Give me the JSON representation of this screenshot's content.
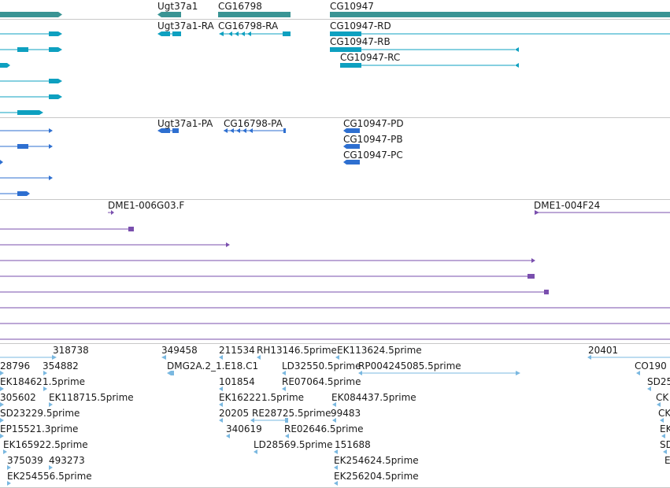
{
  "colors": {
    "gene": "#3a9494",
    "mrna": "#0ea0c0",
    "cds": "#2e6fd0",
    "clone": "#7a4fae",
    "est": "#7ab8e0",
    "divider": "#c8c8c8",
    "text": "#1a1a1a"
  },
  "tracks": [
    {
      "id": "genes",
      "color_key": "gene",
      "rows": [
        {
          "features": [
            {
              "label": "",
              "dir": "none",
              "glyph": "thick"
            },
            {
              "label": "Ugt37a1",
              "dir": "minus",
              "glyph": "thick"
            },
            {
              "label": "CG16798",
              "dir": "none",
              "glyph": "thick"
            },
            {
              "label": "CG10947",
              "dir": "none",
              "glyph": "thick"
            }
          ]
        }
      ]
    },
    {
      "id": "transcripts",
      "color_key": "mrna",
      "rows": [
        {
          "features": [
            {
              "label": "",
              "dir": "plus",
              "glyph": "gene-model"
            },
            {
              "label": "Ugt37a1-RA",
              "dir": "minus",
              "glyph": "gene-model"
            },
            {
              "label": "CG16798-RA",
              "dir": "minus",
              "glyph": "gene-model"
            },
            {
              "label": "CG10947-RD",
              "dir": "none",
              "glyph": "gene-model"
            }
          ]
        },
        {
          "features": [
            {
              "label": "",
              "dir": "plus",
              "glyph": "gene-model"
            },
            {
              "label": "CG10947-RB",
              "dir": "minus",
              "glyph": "gene-model"
            }
          ]
        },
        {
          "features": [
            {
              "label": "",
              "dir": "plus",
              "glyph": "gene-model"
            },
            {
              "label": "CG10947-RC",
              "dir": "minus",
              "glyph": "gene-model"
            }
          ]
        },
        {
          "features": [
            {
              "label": "",
              "dir": "plus",
              "glyph": "gene-model"
            }
          ]
        },
        {
          "features": [
            {
              "label": "",
              "dir": "plus",
              "glyph": "gene-model"
            }
          ]
        },
        {
          "features": [
            {
              "label": "",
              "dir": "plus",
              "glyph": "gene-model"
            }
          ]
        }
      ]
    },
    {
      "id": "cds",
      "color_key": "cds",
      "rows": [
        {
          "features": [
            {
              "label": "",
              "dir": "plus",
              "glyph": "gene-model"
            },
            {
              "label": "Ugt37a1-PA",
              "dir": "minus",
              "glyph": "gene-model"
            },
            {
              "label": "CG16798-PA",
              "dir": "minus",
              "glyph": "gene-model"
            },
            {
              "label": "CG10947-PD",
              "dir": "minus",
              "glyph": "gene-model"
            }
          ]
        },
        {
          "features": [
            {
              "label": "",
              "dir": "plus",
              "glyph": "gene-model"
            },
            {
              "label": "CG10947-PB",
              "dir": "minus",
              "glyph": "gene-model"
            }
          ]
        },
        {
          "features": [
            {
              "label": "",
              "dir": "plus",
              "glyph": "gene-model"
            },
            {
              "label": "CG10947-PC",
              "dir": "minus",
              "glyph": "gene-model"
            }
          ]
        },
        {
          "features": [
            {
              "label": "",
              "dir": "plus",
              "glyph": "gene-model"
            }
          ]
        },
        {
          "features": [
            {
              "label": "",
              "dir": "plus",
              "glyph": "gene-model"
            }
          ]
        }
      ]
    },
    {
      "id": "clones",
      "color_key": "clone",
      "rows": [
        {
          "features": [
            {
              "label": "DME1-006G03.F",
              "dir": "plus",
              "glyph": "line"
            },
            {
              "label": "DME1-004F24",
              "dir": "plus",
              "glyph": "line"
            }
          ]
        },
        {
          "features": [
            {
              "label": "",
              "dir": "plus",
              "glyph": "line"
            }
          ]
        },
        {
          "features": [
            {
              "label": "",
              "dir": "plus",
              "glyph": "line"
            }
          ]
        },
        {
          "features": [
            {
              "label": "",
              "dir": "plus",
              "glyph": "line"
            }
          ]
        },
        {
          "features": [
            {
              "label": "",
              "dir": "plus",
              "glyph": "line"
            }
          ]
        },
        {
          "features": [
            {
              "label": "",
              "dir": "none",
              "glyph": "line"
            }
          ]
        },
        {
          "features": [
            {
              "label": "",
              "dir": "none",
              "glyph": "line"
            }
          ]
        },
        {
          "features": [
            {
              "label": "",
              "dir": "none",
              "glyph": "line"
            }
          ]
        }
      ]
    },
    {
      "id": "ests",
      "color_key": "est",
      "rows": [
        {
          "features": [
            {
              "label": "318738",
              "dir": "plus",
              "glyph": "est"
            },
            {
              "label": "349458",
              "dir": "minus",
              "glyph": "est"
            },
            {
              "label": "211534",
              "dir": "minus",
              "glyph": "est"
            },
            {
              "label": "RH13146.5prime",
              "dir": "minus",
              "glyph": "est"
            },
            {
              "label": "EK113624.5prime",
              "dir": "minus",
              "glyph": "est"
            },
            {
              "label": "20401",
              "dir": "minus",
              "glyph": "est"
            }
          ]
        },
        {
          "features": [
            {
              "label": "28796",
              "dir": "plus",
              "glyph": "est"
            },
            {
              "label": "354882",
              "dir": "plus",
              "glyph": "est"
            },
            {
              "label": "DMG2A.2_1.E18.C1",
              "dir": "minus",
              "glyph": "est"
            },
            {
              "label": "LD32550.5prime",
              "dir": "minus",
              "glyph": "est"
            },
            {
              "label": "RP004245085.5prime",
              "dir": "minus",
              "glyph": "est"
            },
            {
              "label": "CO190",
              "dir": "minus",
              "glyph": "est"
            }
          ]
        },
        {
          "features": [
            {
              "label": "EK18462",
              "dir": "plus",
              "glyph": "est"
            },
            {
              "label": "1.5prime",
              "dir": "plus",
              "glyph": "est"
            },
            {
              "label": "101854",
              "dir": "minus",
              "glyph": "est"
            },
            {
              "label": "RE07064.5prime",
              "dir": "minus",
              "glyph": "est"
            },
            {
              "label": "SD25",
              "dir": "minus",
              "glyph": "est"
            }
          ]
        },
        {
          "features": [
            {
              "label": "305602",
              "dir": "plus",
              "glyph": "est"
            },
            {
              "label": "EK118715.5prime",
              "dir": "plus",
              "glyph": "est"
            },
            {
              "label": "EK16222",
              "dir": "minus",
              "glyph": "est"
            },
            {
              "label": "1.5prime",
              "dir": "minus",
              "glyph": "est"
            },
            {
              "label": "EK084437.5prime",
              "dir": "minus",
              "glyph": "est"
            },
            {
              "label": "CK",
              "dir": "minus",
              "glyph": "est"
            }
          ]
        },
        {
          "features": [
            {
              "label": "SD23229.5prime",
              "dir": "plus",
              "glyph": "est"
            },
            {
              "label": "20205",
              "dir": "minus",
              "glyph": "est"
            },
            {
              "label": "RE28725.5prime",
              "dir": "minus",
              "glyph": "est"
            },
            {
              "label": "99483",
              "dir": "minus",
              "glyph": "est"
            },
            {
              "label": "CK",
              "dir": "minus",
              "glyph": "est"
            }
          ]
        },
        {
          "features": [
            {
              "label": "EP15521.3prime",
              "dir": "plus",
              "glyph": "est"
            },
            {
              "label": "340619",
              "dir": "minus",
              "glyph": "est"
            },
            {
              "label": "RE02646.5prime",
              "dir": "minus",
              "glyph": "est"
            },
            {
              "label": "EK",
              "dir": "minus",
              "glyph": "est"
            }
          ]
        },
        {
          "features": [
            {
              "label": "EK165922.5prime",
              "dir": "plus",
              "glyph": "est"
            },
            {
              "label": "LD28569.5prime",
              "dir": "minus",
              "glyph": "est"
            },
            {
              "label": "151688",
              "dir": "minus",
              "glyph": "est"
            },
            {
              "label": "SD",
              "dir": "minus",
              "glyph": "est"
            }
          ]
        },
        {
          "features": [
            {
              "label": "375039",
              "dir": "plus",
              "glyph": "est"
            },
            {
              "label": "493273",
              "dir": "plus",
              "glyph": "est"
            },
            {
              "label": "EK254624.5prime",
              "dir": "minus",
              "glyph": "est"
            },
            {
              "label": "E",
              "dir": "minus",
              "glyph": "est"
            }
          ]
        },
        {
          "features": [
            {
              "label": "EK254556.5prime",
              "dir": "plus",
              "glyph": "est"
            },
            {
              "label": "EK256204.5prime",
              "dir": "minus",
              "glyph": "est"
            }
          ]
        }
      ]
    }
  ]
}
